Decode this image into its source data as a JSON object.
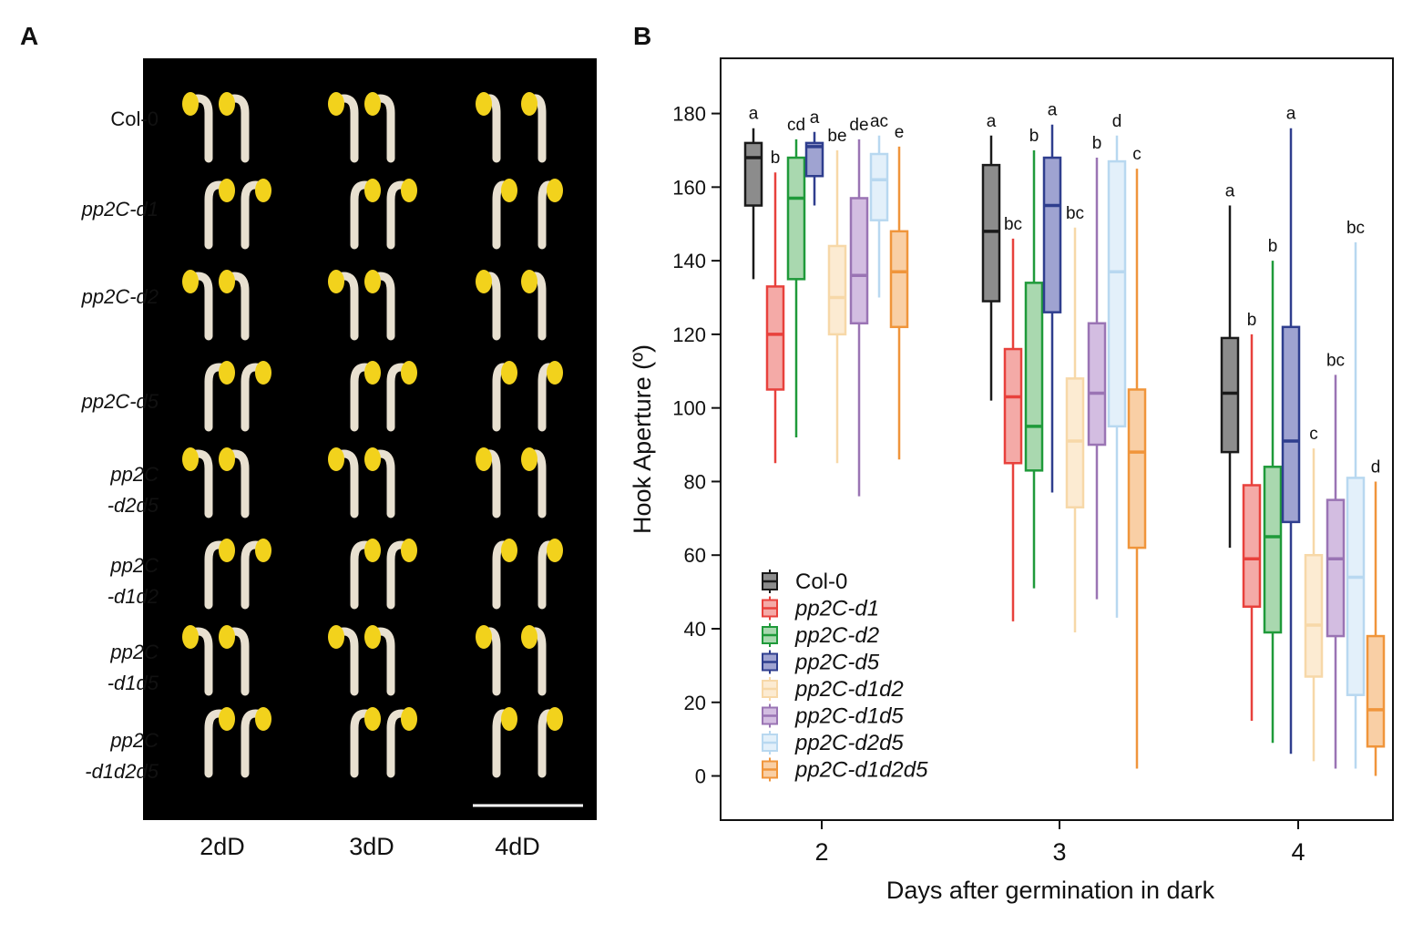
{
  "panels": {
    "a_label": "A",
    "b_label": "B"
  },
  "photo_panel": {
    "rows": [
      {
        "label": "Col-0",
        "italic": false
      },
      {
        "label": "pp2C-d1",
        "italic": true
      },
      {
        "label": "pp2C-d2",
        "italic": true
      },
      {
        "label": "pp2C-d5",
        "italic": true
      },
      {
        "label": "pp2C\n-d2d5",
        "italic": true
      },
      {
        "label": "pp2C\n-d1d2",
        "italic": true
      },
      {
        "label": "pp2C\n-d1d5",
        "italic": true
      },
      {
        "label": "pp2C\n-d1d2d5",
        "italic": true
      }
    ],
    "columns": [
      "2dD",
      "3dD",
      "4dD"
    ]
  },
  "chart_data": {
    "type": "box",
    "title": "",
    "xlabel": "Days after germination in dark",
    "ylabel": "Hook Aperture (º)",
    "categories": [
      "2",
      "3",
      "4"
    ],
    "ylim": [
      -12,
      195
    ],
    "yticks": [
      0,
      20,
      40,
      60,
      80,
      100,
      120,
      140,
      160,
      180
    ],
    "series": [
      {
        "name": "Col-0",
        "italic": false,
        "color": "#1a1a1a",
        "fill": "#8c8c8c",
        "boxes": [
          {
            "min": 135,
            "q1": 155,
            "median": 168,
            "q3": 172,
            "max": 176,
            "letter": "a"
          },
          {
            "min": 102,
            "q1": 129,
            "median": 148,
            "q3": 166,
            "max": 174,
            "letter": "a"
          },
          {
            "min": 62,
            "q1": 88,
            "median": 104,
            "q3": 119,
            "max": 155,
            "letter": "a"
          }
        ]
      },
      {
        "name": "pp2C-d1",
        "italic": true,
        "color": "#e8413c",
        "fill": "#f4aaa7",
        "boxes": [
          {
            "min": 85,
            "q1": 105,
            "median": 120,
            "q3": 133,
            "max": 164,
            "letter": "b"
          },
          {
            "min": 42,
            "q1": 85,
            "median": 103,
            "q3": 116,
            "max": 146,
            "letter": "bc"
          },
          {
            "min": 15,
            "q1": 46,
            "median": 59,
            "q3": 79,
            "max": 120,
            "letter": "b"
          }
        ]
      },
      {
        "name": "pp2C-d2",
        "italic": true,
        "color": "#1f9a3a",
        "fill": "#a9d8af",
        "boxes": [
          {
            "min": 92,
            "q1": 135,
            "median": 157,
            "q3": 168,
            "max": 173,
            "letter": "cd"
          },
          {
            "min": 51,
            "q1": 83,
            "median": 95,
            "q3": 134,
            "max": 170,
            "letter": "b"
          },
          {
            "min": 9,
            "q1": 39,
            "median": 65,
            "q3": 84,
            "max": 140,
            "letter": "b"
          }
        ]
      },
      {
        "name": "pp2C-d5",
        "italic": true,
        "color": "#2f3e8e",
        "fill": "#9fa3d1",
        "boxes": [
          {
            "min": 155,
            "q1": 163,
            "median": 171,
            "q3": 172,
            "max": 175,
            "letter": "a"
          },
          {
            "min": 77,
            "q1": 126,
            "median": 155,
            "q3": 168,
            "max": 177,
            "letter": "a"
          },
          {
            "min": 6,
            "q1": 69,
            "median": 91,
            "q3": 122,
            "max": 176,
            "letter": "a"
          }
        ]
      },
      {
        "name": "pp2C-d1d2",
        "italic": true,
        "color": "#f7d8a8",
        "fill": "#fcebd2",
        "boxes": [
          {
            "min": 85,
            "q1": 120,
            "median": 130,
            "q3": 144,
            "max": 170,
            "letter": "be"
          },
          {
            "min": 39,
            "q1": 73,
            "median": 91,
            "q3": 108,
            "max": 149,
            "letter": "bc"
          },
          {
            "min": 4,
            "q1": 27,
            "median": 41,
            "q3": 60,
            "max": 89,
            "letter": "c"
          }
        ]
      },
      {
        "name": "pp2C-d1d5",
        "italic": true,
        "color": "#9a74b4",
        "fill": "#d3bde1",
        "boxes": [
          {
            "min": 76,
            "q1": 123,
            "median": 136,
            "q3": 157,
            "max": 173,
            "letter": "de"
          },
          {
            "min": 48,
            "q1": 90,
            "median": 104,
            "q3": 123,
            "max": 168,
            "letter": "b"
          },
          {
            "min": 2,
            "q1": 38,
            "median": 59,
            "q3": 75,
            "max": 109,
            "letter": "bc"
          }
        ]
      },
      {
        "name": "pp2C-d2d5",
        "italic": true,
        "color": "#b8d8f0",
        "fill": "#e3f0fa",
        "boxes": [
          {
            "min": 130,
            "q1": 151,
            "median": 162,
            "q3": 169,
            "max": 174,
            "letter": "ac"
          },
          {
            "min": 43,
            "q1": 95,
            "median": 137,
            "q3": 167,
            "max": 174,
            "letter": "d"
          },
          {
            "min": 2,
            "q1": 22,
            "median": 54,
            "q3": 81,
            "max": 145,
            "letter": "bc"
          }
        ]
      },
      {
        "name": "pp2C-d1d2d5",
        "italic": true,
        "color": "#f0953b",
        "fill": "#f9cfa5",
        "boxes": [
          {
            "min": 86,
            "q1": 122,
            "median": 137,
            "q3": 148,
            "max": 171,
            "letter": "e"
          },
          {
            "min": 2,
            "q1": 62,
            "median": 88,
            "q3": 105,
            "max": 165,
            "letter": "c"
          },
          {
            "min": 0,
            "q1": 8,
            "median": 18,
            "q3": 38,
            "max": 80,
            "letter": "d"
          }
        ]
      }
    ],
    "legend": "bottom-left"
  }
}
